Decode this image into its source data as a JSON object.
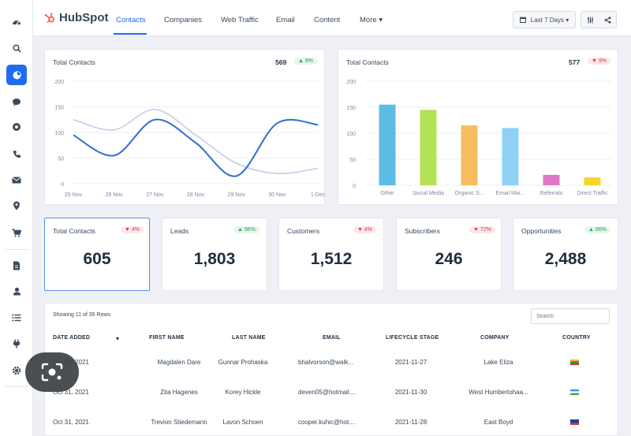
{
  "brand": {
    "name": "HubSpot"
  },
  "nav": {
    "tabs": [
      "Contacts",
      "Companies",
      "Web Traffic",
      "Email",
      "Content",
      "More ▾"
    ],
    "active": "Contacts"
  },
  "toolbar": {
    "date_range": "Last 7 Days ▾"
  },
  "sidebar": {
    "icons": [
      "dashboard-icon",
      "search-icon",
      "reports-icon",
      "chat-icon",
      "help-icon",
      "phone-icon",
      "mail-icon",
      "location-icon",
      "cart-icon",
      "document-icon",
      "user-icon",
      "list-icon",
      "plug-icon",
      "settings-icon"
    ],
    "active": "reports-icon"
  },
  "line_chart_card": {
    "title": "Total Contacts",
    "count": "569",
    "badge": "▲ 8%"
  },
  "bar_chart_card": {
    "title": "Total Contacts",
    "count": "577",
    "badge": "▼ 9%"
  },
  "chart_data": [
    {
      "type": "line",
      "title": "Total Contacts",
      "x": [
        "25 Nov",
        "26 Nov",
        "27 Nov",
        "28 Nov",
        "29 Nov",
        "30 Nov",
        "1 Dec"
      ],
      "yticks": [
        0,
        50,
        100,
        150,
        200
      ],
      "ylim": [
        0,
        200
      ],
      "series": [
        {
          "values": [
            95,
            55,
            125,
            80,
            15,
            118,
            115
          ],
          "color": "#2f6fd0"
        },
        {
          "values": [
            125,
            105,
            145,
            95,
            40,
            20,
            30
          ],
          "color": "#c8d3ea"
        }
      ],
      "grid": true
    },
    {
      "type": "bar",
      "title": "Total Contacts",
      "categories": [
        "Other",
        "Social Media",
        "Organic S...",
        "Email Mar...",
        "Referrals",
        "Direct Traffic"
      ],
      "values": [
        155,
        145,
        115,
        110,
        20,
        15
      ],
      "colors": [
        "#5bbde4",
        "#b5e255",
        "#f6bd60",
        "#8ed1f5",
        "#e178c5",
        "#f5d52c"
      ],
      "yticks": [
        0,
        50,
        100,
        150,
        200
      ],
      "ylim": [
        0,
        200
      ],
      "grid": true
    }
  ],
  "stats": [
    {
      "title": "Total Contacts",
      "value": "605",
      "badge": "▼ 4%",
      "trend": "down"
    },
    {
      "title": "Leads",
      "value": "1,803",
      "badge": "▲ 96%",
      "trend": "up"
    },
    {
      "title": "Customers",
      "value": "1,512",
      "badge": "▼ 4%",
      "trend": "down"
    },
    {
      "title": "Subscribers",
      "value": "246",
      "badge": "▼ 72%",
      "trend": "down"
    },
    {
      "title": "Opportunities",
      "value": "2,488",
      "badge": "▲ 96%",
      "trend": "up"
    }
  ],
  "table": {
    "rows_label": "Showing 11 of 35 Rows",
    "search_placeholder": "Search",
    "columns": [
      "DATE ADDED",
      "FIRST NAME",
      "LAST NAME",
      "EMAIL",
      "LIFECYCLE STAGE",
      "COMPANY",
      "COUNTRY"
    ],
    "sort_indicator": "▾",
    "rows": [
      [
        "Oct 31, 2021",
        "Magdalen Dare",
        "Gunnar Prohaska",
        "bhalvorson@walk...",
        "2021-11-27",
        "Lake Eliza",
        ""
      ],
      [
        "Oct 31, 2021",
        "Zita Hagenes",
        "Korey Hickle",
        "deven05@hotmail....",
        "2021-11-30",
        "West Humbertohaa...",
        ""
      ],
      [
        "Oct 31, 2021",
        "Trevion Stiedemann",
        "Lavon Schoen",
        "cooper.kuhic@hot....",
        "2021-11-28",
        "East Boyd",
        ""
      ]
    ],
    "flags": [
      [
        "#e8b925",
        "#2a8a4a",
        "#c83a3a"
      ],
      [
        "#3b8de0",
        "#ffffff",
        "#43a047"
      ],
      [
        "#1e3f8a",
        "#1e3f8a",
        "#c83a3a"
      ]
    ]
  }
}
